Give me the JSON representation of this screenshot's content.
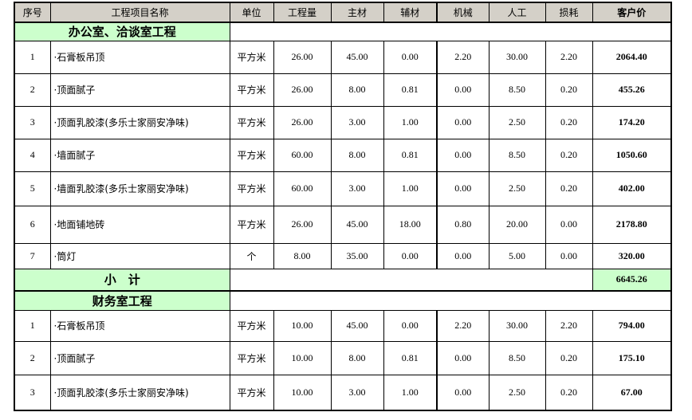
{
  "table": {
    "columns": [
      {
        "key": "seq",
        "label": "序号"
      },
      {
        "key": "item-name",
        "label": "工程项目名称"
      },
      {
        "key": "unit",
        "label": "单位"
      },
      {
        "key": "quantity",
        "label": "工程量"
      },
      {
        "key": "main-material",
        "label": "主材"
      },
      {
        "key": "aux-material",
        "label": "辅材"
      },
      {
        "key": "machinery",
        "label": "机械"
      },
      {
        "key": "labor",
        "label": "人工"
      },
      {
        "key": "loss",
        "label": "损耗"
      },
      {
        "key": "price",
        "label": "客户价"
      }
    ],
    "sections": [
      {
        "title": "办公室、洽谈室工程",
        "rows": [
          [
            "1",
            "·石膏板吊顶",
            "平方米",
            "26.00",
            "45.00",
            "0.00",
            "2.20",
            "30.00",
            "2.20",
            "2064.40"
          ],
          [
            "2",
            "·顶面腻子",
            "平方米",
            "26.00",
            "8.00",
            "0.81",
            "0.00",
            "8.50",
            "0.20",
            "455.26"
          ],
          [
            "3",
            "·顶面乳胶漆(多乐士家丽安净味)",
            "平方米",
            "26.00",
            "3.00",
            "1.00",
            "0.00",
            "2.50",
            "0.20",
            "174.20"
          ],
          [
            "4",
            "·墙面腻子",
            "平方米",
            "60.00",
            "8.00",
            "0.81",
            "0.00",
            "8.50",
            "0.20",
            "1050.60"
          ],
          [
            "5",
            "·墙面乳胶漆(多乐士家丽安净味)",
            "平方米",
            "60.00",
            "3.00",
            "1.00",
            "0.00",
            "2.50",
            "0.20",
            "402.00"
          ],
          [
            "6",
            "·地面铺地砖",
            "平方米",
            "26.00",
            "45.00",
            "18.00",
            "0.80",
            "20.00",
            "0.00",
            "2178.80"
          ],
          [
            "7",
            "·筒灯",
            "个",
            "8.00",
            "35.00",
            "0.00",
            "0.00",
            "5.00",
            "0.00",
            "320.00"
          ]
        ],
        "subtotal": {
          "label": "小　计",
          "value": "6645.26"
        }
      },
      {
        "title": "财务室工程",
        "rows": [
          [
            "1",
            "·石膏板吊顶",
            "平方米",
            "10.00",
            "45.00",
            "0.00",
            "2.20",
            "30.00",
            "2.20",
            "794.00"
          ],
          [
            "2",
            "·顶面腻子",
            "平方米",
            "10.00",
            "8.00",
            "0.81",
            "0.00",
            "8.50",
            "0.20",
            "175.10"
          ],
          [
            "3",
            "·顶面乳胶漆(多乐士家丽安净味)",
            "平方米",
            "10.00",
            "3.00",
            "1.00",
            "0.00",
            "2.50",
            "0.20",
            "67.00"
          ]
        ]
      }
    ]
  },
  "colors": {
    "header_bg": "#d4d0c8",
    "section_green": "#ccffcc",
    "border": "#000000",
    "text": "#000000"
  }
}
